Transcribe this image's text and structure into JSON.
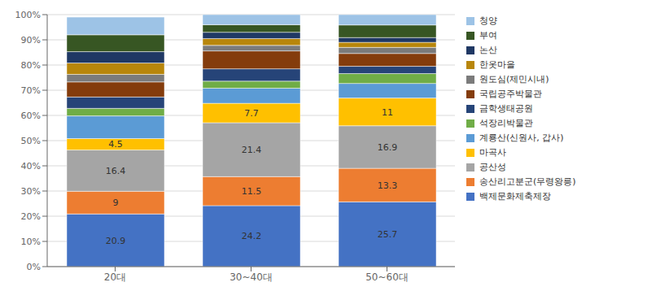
{
  "chart_data": {
    "type": "bar",
    "stacked": true,
    "grid": true,
    "legend": "right",
    "categories": [
      "20대",
      "30~40대",
      "50~60대"
    ],
    "series": [
      {
        "name": "백제문화제축제장",
        "values": [
          20.9,
          24.2,
          25.7
        ],
        "color": "#4472C4",
        "data_labels": true
      },
      {
        "name": "송산리고분군(무령왕릉)",
        "values": [
          9.0,
          11.5,
          13.3
        ],
        "color": "#ED7D31",
        "data_labels": true
      },
      {
        "name": "공산성",
        "values": [
          16.4,
          21.4,
          16.9
        ],
        "color": "#A5A5A5",
        "data_labels": true
      },
      {
        "name": "마곡사",
        "values": [
          4.5,
          7.7,
          11.0
        ],
        "color": "#FFC000",
        "data_labels": true
      },
      {
        "name": "계룡산(신원사, 갑사)",
        "values": [
          9.0,
          6.0,
          5.8
        ],
        "color": "#5B9BD5"
      },
      {
        "name": "석장리박물관",
        "values": [
          3.0,
          2.8,
          3.9
        ],
        "color": "#70AD47"
      },
      {
        "name": "금학생태공원",
        "values": [
          4.5,
          4.9,
          2.9
        ],
        "color": "#264478"
      },
      {
        "name": "국립공주박물관",
        "values": [
          6.0,
          7.1,
          5.1
        ],
        "color": "#843C0C"
      },
      {
        "name": "원도심(제민시내)",
        "values": [
          3.0,
          2.2,
          2.4
        ],
        "color": "#7B7B7B"
      },
      {
        "name": "한옷마을",
        "values": [
          4.5,
          2.7,
          2.0
        ],
        "color": "#B8860B"
      },
      {
        "name": "논산",
        "values": [
          4.5,
          2.5,
          1.9
        ],
        "color": "#1F3864"
      },
      {
        "name": "부여",
        "values": [
          6.7,
          3.0,
          5.0
        ],
        "color": "#375623"
      },
      {
        "name": "청양",
        "values": [
          7.0,
          4.0,
          4.1
        ],
        "color": "#9DC3E6"
      }
    ],
    "ylim": [
      0,
      100
    ],
    "yticks": [
      {
        "value": 0,
        "label": "0%"
      },
      {
        "value": 10,
        "label": "10%"
      },
      {
        "value": 20,
        "label": "20%"
      },
      {
        "value": 30,
        "label": "30%"
      },
      {
        "value": 40,
        "label": "40%"
      },
      {
        "value": 50,
        "label": "50%"
      },
      {
        "value": 60,
        "label": "60%"
      },
      {
        "value": 70,
        "label": "70%"
      },
      {
        "value": 80,
        "label": "80%"
      },
      {
        "value": 90,
        "label": "90%"
      },
      {
        "value": 100,
        "label": "100%"
      }
    ]
  }
}
